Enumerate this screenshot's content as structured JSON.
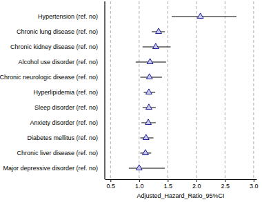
{
  "chart_data": {
    "type": "forest",
    "categories": [
      "Hypertension (ref. no)",
      "Chronic lung disease (ref. no)",
      "Chronic kidney disease (ref. no)",
      "Alcohol use disorder (ref. no)",
      "Chronic neurologic disease (ref. no)",
      "Hyperlipidemia (ref. no)",
      "Sleep disorder (ref. no)",
      "Anxiety disorder (ref. no)",
      "Diabetes mellitus (ref. no)",
      "Chronic liver disease (ref. no)",
      "Major depressive disorder (ref. no)"
    ],
    "values": [
      2.07,
      1.34,
      1.29,
      1.19,
      1.18,
      1.17,
      1.17,
      1.16,
      1.12,
      1.11,
      1.0
    ],
    "ci_lower": [
      1.57,
      1.22,
      1.06,
      0.94,
      1.02,
      1.08,
      1.06,
      1.04,
      1.02,
      1.02,
      0.82
    ],
    "ci_upper": [
      2.7,
      1.45,
      1.55,
      1.47,
      1.4,
      1.28,
      1.29,
      1.29,
      1.25,
      1.21,
      1.45
    ],
    "x_label": "Adjusted_Hazard_Ratio_95%CI",
    "xlim": [
      0.4,
      3.05
    ],
    "xticks": [
      0.5,
      {
        "value": 1,
        "label": "1.0"
      },
      1.5,
      {
        "value": 2,
        "label": "2.0"
      },
      2.5,
      {
        "value": 3,
        "label": "3.0"
      }
    ],
    "grid": true,
    "color": "#1a1a8c",
    "marker": "triangle"
  }
}
